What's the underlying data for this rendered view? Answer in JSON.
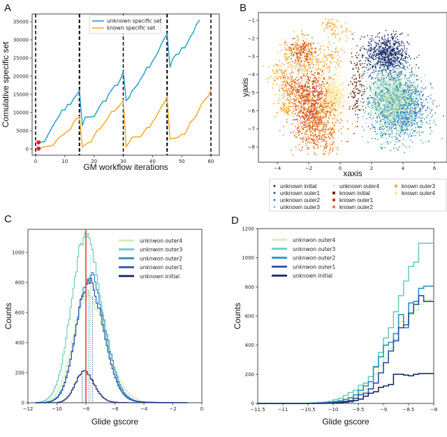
{
  "panels": {
    "a": "A",
    "b": "B",
    "c": "C",
    "d": "D"
  },
  "footer_text": "",
  "chart_data": [
    {
      "id": "A",
      "type": "line",
      "title": "",
      "xlabel": "GM workflow iterations",
      "ylabel": "Comulative specific set",
      "xlim": [
        -1,
        62
      ],
      "ylim": [
        -1500,
        37000
      ],
      "xticks": [
        0,
        10,
        20,
        30,
        40,
        50,
        60
      ],
      "yticks": [
        0,
        5000,
        10000,
        15000,
        20000,
        25000,
        30000,
        35000
      ],
      "grid": false,
      "legend": {
        "placement": "top-center",
        "entries": [
          "unknown specific set",
          "known specific set"
        ]
      },
      "vlines_dashed": [
        0,
        15,
        30,
        45,
        60
      ],
      "start_markers": [
        {
          "x": 1,
          "y": 1800,
          "color": "#e8201e"
        },
        {
          "x": 1,
          "y": 100,
          "color": "#e8201e"
        }
      ],
      "series": [
        {
          "name": "unknown specific set",
          "color": "#1f9bcf",
          "x": [
            1,
            2,
            3,
            4,
            5,
            6,
            7,
            8,
            9,
            10,
            11,
            12,
            13,
            14,
            15,
            16,
            17,
            18,
            19,
            20,
            21,
            22,
            23,
            24,
            25,
            26,
            27,
            28,
            29,
            30,
            31,
            32,
            33,
            34,
            35,
            36,
            37,
            38,
            39,
            40,
            41,
            42,
            43,
            44,
            45,
            46,
            47,
            48,
            49,
            50,
            51,
            52,
            53,
            54,
            55,
            56
          ],
          "y": [
            1800,
            1900,
            2000,
            3500,
            5000,
            6500,
            7800,
            9000,
            10700,
            10700,
            12200,
            12300,
            13800,
            14800,
            16100,
            6500,
            8700,
            8800,
            8800,
            8900,
            10300,
            11800,
            13100,
            13100,
            15100,
            16200,
            17400,
            17500,
            19100,
            21300,
            13300,
            14100,
            16000,
            16800,
            17800,
            19300,
            20500,
            22400,
            22500,
            24100,
            25300,
            26800,
            28800,
            30300,
            31700,
            22500,
            24900,
            25900,
            26100,
            27800,
            27800,
            29200,
            30900,
            32100,
            34200,
            35300
          ]
        },
        {
          "name": "known specific set",
          "color": "#f5a623",
          "x": [
            1,
            2,
            3,
            4,
            5,
            6,
            7,
            8,
            9,
            10,
            11,
            12,
            13,
            14,
            15,
            16,
            17,
            18,
            19,
            20,
            21,
            22,
            23,
            24,
            25,
            26,
            27,
            28,
            29,
            30,
            31,
            32,
            33,
            34,
            35,
            36,
            37,
            38,
            39,
            40,
            41,
            42,
            43,
            44,
            45,
            46,
            47,
            48,
            49,
            50,
            51,
            52,
            53,
            54,
            55,
            56,
            57,
            58,
            59,
            60
          ],
          "y": [
            100,
            300,
            600,
            700,
            800,
            1000,
            2200,
            3100,
            3700,
            4300,
            4900,
            5500,
            7400,
            8300,
            8900,
            600,
            1200,
            1700,
            2000,
            3600,
            5000,
            5500,
            6600,
            7600,
            8800,
            10300,
            10400,
            11300,
            12200,
            13400,
            600,
            1800,
            3200,
            3300,
            3300,
            3400,
            4600,
            5800,
            5900,
            7400,
            8500,
            10000,
            11500,
            12700,
            14300,
            2700,
            2900,
            3000,
            3300,
            4000,
            4000,
            5500,
            7300,
            8100,
            9200,
            11000,
            12600,
            13600,
            14400,
            16300
          ]
        }
      ]
    },
    {
      "id": "B",
      "type": "scatter",
      "title": "",
      "xlabel": "xaxis",
      "ylabel": "yaxis",
      "xlim": [
        -5.0,
        6.7
      ],
      "ylim": [
        -8.8,
        -0.6
      ],
      "xticks": [
        -4,
        -2,
        0,
        2,
        4,
        6
      ],
      "yticks": [
        -1,
        -2,
        -3,
        -4,
        -5,
        -6,
        -7,
        -8
      ],
      "grid": false,
      "legend": {
        "placement": "bottom-outside",
        "columns": 3
      },
      "series": [
        {
          "name": "unknown initial",
          "marker": "circle",
          "color": "#172a6b",
          "center": [
            3.0,
            -2.9
          ],
          "spread": [
            1.1,
            0.9
          ],
          "count": 700
        },
        {
          "name": "unknown outer1",
          "marker": "circle",
          "color": "#2a4fa3",
          "center": [
            3.6,
            -5.4
          ],
          "spread": [
            1.5,
            1.5
          ],
          "count": 700
        },
        {
          "name": "unknown outer2",
          "marker": "circle",
          "color": "#2a8fc4",
          "center": [
            3.8,
            -6.2
          ],
          "spread": [
            1.4,
            1.3
          ],
          "count": 700
        },
        {
          "name": "unknown outer3",
          "marker": "circle",
          "color": "#6ccdc0",
          "center": [
            3.3,
            -5.2
          ],
          "spread": [
            1.4,
            1.4
          ],
          "count": 800
        },
        {
          "name": "unknown outer4",
          "marker": "circle",
          "color": "#d2edb0",
          "center": [
            3.4,
            -5.6
          ],
          "spread": [
            1.3,
            1.3
          ],
          "count": 600
        },
        {
          "name": "known initial",
          "marker": "square",
          "color": "#6b2a12",
          "center": [
            1.1,
            -4.5
          ],
          "spread": [
            0.4,
            1.8
          ],
          "count": 120
        },
        {
          "name": "known outer1",
          "marker": "square",
          "color": "#c6472a",
          "center": [
            -1.9,
            -5.5
          ],
          "spread": [
            0.9,
            1.6
          ],
          "count": 500
        },
        {
          "name": "known outer2",
          "marker": "square",
          "color": "#f0862c",
          "center": [
            -1.6,
            -6.3
          ],
          "spread": [
            1.2,
            1.3
          ],
          "count": 900
        },
        {
          "name": "known outer3",
          "marker": "square",
          "color": "#f8b040",
          "center": [
            -2.0,
            -3.4
          ],
          "spread": [
            1.3,
            1.1
          ],
          "count": 700
        },
        {
          "name": "known outer4",
          "marker": "square",
          "color": "#fde9a8",
          "center": [
            -0.5,
            -5.3
          ],
          "spread": [
            0.7,
            0.9
          ],
          "count": 700
        }
      ]
    },
    {
      "id": "C",
      "type": "line",
      "subtype": "step-histogram",
      "title": "",
      "xlabel": "Glide gscore",
      "ylabel": "Counts",
      "xlim": [
        -12,
        0
      ],
      "ylim": [
        0,
        1150
      ],
      "xticks": [
        -12,
        -10,
        -8,
        -6,
        -4,
        -2,
        0
      ],
      "yticks": [
        0,
        200,
        400,
        600,
        800,
        1000
      ],
      "grid": false,
      "legend": {
        "placement": "top-right"
      },
      "threshold_line": {
        "x": -8.0,
        "color": "#e8322e"
      },
      "series": [
        {
          "name": "unknwon outer4",
          "color": "#d2edb0",
          "peak_x": -7.95,
          "peak": 700,
          "width_left": 0.95,
          "width_right": 1.3,
          "median": -7.7
        },
        {
          "name": "unknwon outer3",
          "color": "#6ccdc0",
          "peak_x": -8.05,
          "peak": 1100,
          "width_left": 0.95,
          "width_right": 1.05,
          "median": -7.7
        },
        {
          "name": "unknwon outer2",
          "color": "#2a8fc4",
          "peak_x": -7.75,
          "peak": 830,
          "width_left": 0.9,
          "width_right": 1.05,
          "median": -7.8
        },
        {
          "name": "unknwon outer1",
          "color": "#2a4fa3",
          "peak_x": -7.85,
          "peak": 790,
          "width_left": 0.85,
          "width_right": 1.05,
          "median": -7.55
        },
        {
          "name": "unknown initial",
          "color": "#172a6b",
          "peak_x": -8.15,
          "peak": 205,
          "width_left": 0.6,
          "width_right": 0.7,
          "median": -8.25
        }
      ]
    },
    {
      "id": "D",
      "type": "line",
      "subtype": "step-histogram",
      "title": "",
      "xlabel": "Glide gscore",
      "ylabel": "Counts",
      "xlim": [
        -11.5,
        -8.0
      ],
      "ylim": [
        0,
        1200
      ],
      "xticks": [
        -11.5,
        -11.0,
        -10.5,
        -10.0,
        -9.5,
        -9.0,
        -8.5,
        -8.0
      ],
      "yticks": [
        0,
        200,
        400,
        600,
        800,
        1000,
        1200
      ],
      "grid": false,
      "legend": {
        "placement": "top-left"
      },
      "bin_width": 0.1,
      "bin_start": -11.5,
      "series": [
        {
          "name": "unknwon outer4",
          "color": "#d2edb0",
          "values": [
            0,
            0,
            0,
            0,
            0,
            0,
            0,
            0,
            0,
            0,
            2,
            3,
            5,
            7,
            10,
            15,
            20,
            28,
            35,
            50,
            75,
            100,
            150,
            200,
            260,
            310,
            380,
            440,
            560,
            560,
            610,
            640,
            680,
            710,
            710
          ]
        },
        {
          "name": "unknwon outer3",
          "color": "#6ccdc0",
          "values": [
            0,
            0,
            0,
            0,
            0,
            0,
            0,
            0,
            0,
            0,
            3,
            5,
            7,
            10,
            15,
            25,
            35,
            55,
            75,
            90,
            125,
            140,
            185,
            255,
            350,
            450,
            520,
            630,
            740,
            840,
            940,
            970,
            1100,
            1100,
            1100
          ]
        },
        {
          "name": "unknwon outer2",
          "color": "#2a8fc4",
          "values": [
            0,
            0,
            0,
            0,
            0,
            0,
            0,
            0,
            0,
            0,
            1,
            2,
            3,
            5,
            8,
            12,
            18,
            28,
            40,
            60,
            90,
            120,
            150,
            250,
            320,
            400,
            420,
            480,
            610,
            520,
            690,
            700,
            790,
            805,
            805
          ]
        },
        {
          "name": "unknwon outer1",
          "color": "#2a4fa3",
          "values": [
            0,
            0,
            0,
            0,
            0,
            0,
            0,
            0,
            0,
            0,
            0,
            1,
            2,
            3,
            5,
            8,
            10,
            15,
            20,
            35,
            60,
            70,
            100,
            140,
            210,
            280,
            360,
            430,
            520,
            540,
            620,
            680,
            740,
            700,
            700
          ]
        },
        {
          "name": "unknown initial",
          "color": "#172a6b",
          "values": [
            0,
            0,
            0,
            0,
            0,
            0,
            0,
            0,
            0,
            0,
            0,
            0,
            0,
            1,
            2,
            3,
            5,
            8,
            12,
            20,
            30,
            50,
            70,
            80,
            110,
            120,
            130,
            200,
            200,
            195,
            190,
            200,
            205,
            205,
            205
          ]
        }
      ]
    }
  ]
}
